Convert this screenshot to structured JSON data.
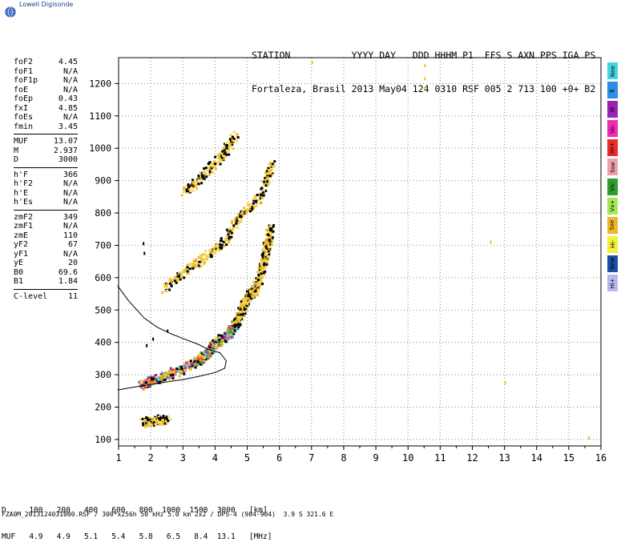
{
  "logo": {
    "text": "Lowell Digisonde",
    "icon": "globe-icon"
  },
  "header": {
    "line1": "STATION           YYYY DAY   DDD HHHM P1  FFS S AXN PPS IGA PS",
    "line2": "Fortaleza, Brasil 2013 May04 124 0310 RSF 005 2 713 100 +0+ B2"
  },
  "params": [
    [
      [
        "foF2",
        "4.45"
      ],
      [
        "foF1",
        "N/A"
      ],
      [
        "foF1p",
        "N/A"
      ],
      [
        "foE",
        "N/A"
      ],
      [
        "foEp",
        "0.43"
      ],
      [
        "fxI",
        "4.85"
      ],
      [
        "foEs",
        "N/A"
      ],
      [
        "fmin",
        "3.45"
      ]
    ],
    [
      [
        "MUF",
        "13.07"
      ],
      [
        "M",
        "2.937"
      ],
      [
        "D",
        "3000"
      ]
    ],
    [
      [
        "h'F",
        "366"
      ],
      [
        "h'F2",
        "N/A"
      ],
      [
        "h'E",
        "N/A"
      ],
      [
        "h'Es",
        "N/A"
      ]
    ],
    [
      [
        "zmF2",
        "349"
      ],
      [
        "zmF1",
        "N/A"
      ],
      [
        "zmE",
        "110"
      ],
      [
        "yF2",
        "67"
      ],
      [
        "yF1",
        "N/A"
      ],
      [
        "yE",
        "20"
      ],
      [
        "B0",
        "69.6"
      ],
      [
        "B1",
        "1.84"
      ]
    ],
    [
      [
        "C-level",
        "11"
      ]
    ]
  ],
  "legend": [
    {
      "label": "Nne",
      "color": "#44d6e0"
    },
    {
      "label": "E",
      "color": "#2b8ee8"
    },
    {
      "label": "W",
      "color": "#9a22b8"
    },
    {
      "label": "Vo-",
      "color": "#ee2ab4"
    },
    {
      "label": "Vo+",
      "color": "#ee2a2a"
    },
    {
      "label": "Ssw",
      "color": "#f0a0a8"
    },
    {
      "label": "Vx-",
      "color": "#2f9e2f"
    },
    {
      "label": "Vx+",
      "color": "#a4e85a"
    },
    {
      "label": "Sse",
      "color": "#f0b828"
    },
    {
      "label": "Hi-",
      "color": "#f2f03a"
    },
    {
      "label": "Nnw",
      "color": "#1c4ea8"
    },
    {
      "label": "Hi+",
      "color": "#b8b8ee"
    }
  ],
  "footer": {
    "d_row": "D     100   200   400   600   800  1000  1500  3000   [km]",
    "muf_row": "MUF   4.9   4.9   5.1   5.4   5.8   6.5   8.4  13.1   [MHz]",
    "file_line": "FZA0M_2013124031000.RSF / 300*x256h 50 kHz 5.0 km 2x2 / DPS-4 (904-904)  3.9 S 321.6 E"
  },
  "chart_data": {
    "type": "scatter",
    "xlim": [
      1,
      16
    ],
    "ylim": [
      80,
      1280
    ],
    "xticks": [
      1,
      2,
      3,
      4,
      5,
      6,
      7,
      8,
      9,
      10,
      11,
      12,
      13,
      14,
      15,
      16
    ],
    "yticks": [
      100,
      200,
      300,
      400,
      500,
      600,
      700,
      800,
      900,
      1000,
      1100,
      1200
    ],
    "grid": true,
    "traces": [
      {
        "name": "F2 first hop",
        "points": [
          [
            1.7,
            270
          ],
          [
            2.0,
            285
          ],
          [
            2.5,
            300
          ],
          [
            3.0,
            325
          ],
          [
            3.5,
            350
          ],
          [
            3.8,
            375
          ],
          [
            4.0,
            400
          ],
          [
            4.3,
            420
          ],
          [
            4.5,
            445
          ],
          [
            4.7,
            475
          ],
          [
            4.85,
            510
          ],
          [
            5.0,
            550
          ],
          [
            5.2,
            560
          ],
          [
            5.35,
            600
          ],
          [
            5.5,
            660
          ],
          [
            5.6,
            710
          ],
          [
            5.7,
            760
          ]
        ]
      },
      {
        "name": "F2 second hop",
        "points": [
          [
            2.4,
            570
          ],
          [
            2.8,
            600
          ],
          [
            3.2,
            640
          ],
          [
            3.6,
            660
          ],
          [
            4.0,
            690
          ],
          [
            4.3,
            720
          ],
          [
            4.6,
            770
          ],
          [
            4.8,
            800
          ],
          [
            5.2,
            830
          ],
          [
            5.4,
            860
          ],
          [
            5.6,
            920
          ],
          [
            5.75,
            960
          ]
        ]
      },
      {
        "name": "F2 third hop",
        "points": [
          [
            3.0,
            870
          ],
          [
            3.3,
            890
          ],
          [
            3.6,
            920
          ],
          [
            3.9,
            950
          ],
          [
            4.2,
            980
          ],
          [
            4.4,
            1010
          ],
          [
            4.6,
            1050
          ]
        ]
      },
      {
        "name": "E layer",
        "points": [
          [
            1.7,
            155
          ],
          [
            1.9,
            158
          ],
          [
            2.1,
            160
          ],
          [
            2.3,
            165
          ],
          [
            2.5,
            160
          ]
        ]
      }
    ],
    "profile_curve": [
      [
        0.97,
        575
      ],
      [
        1.3,
        530
      ],
      [
        1.8,
        475
      ],
      [
        2.2,
        447
      ],
      [
        2.6,
        428
      ],
      [
        3.0,
        412
      ],
      [
        3.5,
        393
      ],
      [
        3.8,
        378
      ],
      [
        4.15,
        368
      ],
      [
        4.35,
        343
      ],
      [
        4.3,
        320
      ],
      [
        4.0,
        307
      ],
      [
        3.5,
        295
      ],
      [
        3.0,
        285
      ],
      [
        2.5,
        278
      ],
      [
        2.0,
        270
      ],
      [
        1.5,
        262
      ],
      [
        0.97,
        253
      ]
    ],
    "stray_points": [
      [
        1.75,
        710
      ],
      [
        1.78,
        680
      ],
      [
        1.85,
        395
      ],
      [
        2.05,
        415
      ],
      [
        2.5,
        440
      ],
      [
        7.0,
        1270
      ],
      [
        10.5,
        1260
      ],
      [
        10.5,
        1220
      ],
      [
        10.5,
        1190
      ],
      [
        12.55,
        715
      ],
      [
        13.0,
        280
      ],
      [
        15.6,
        110
      ]
    ]
  }
}
